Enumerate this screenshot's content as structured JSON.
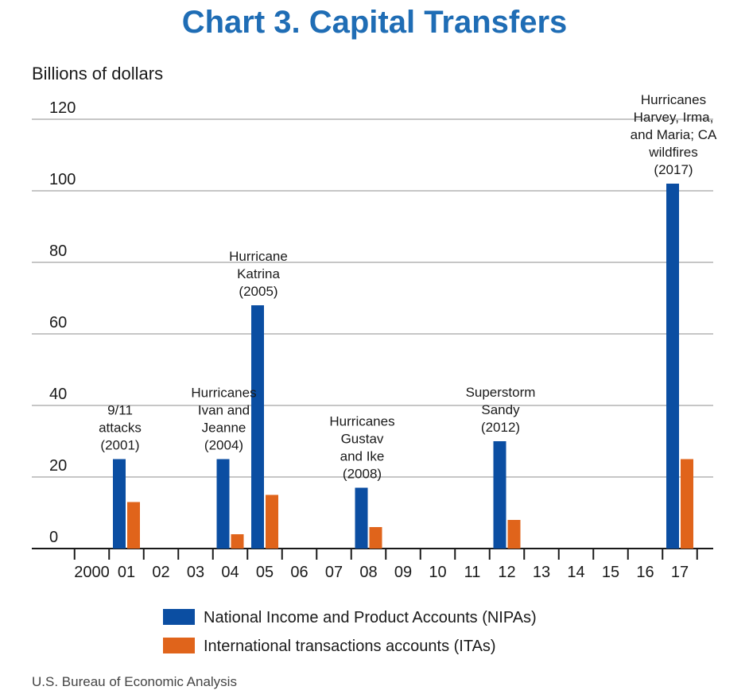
{
  "chart_data": {
    "type": "bar",
    "title": "Chart 3. Capital Transfers",
    "ylabel": "Billions of dollars",
    "xlabel": "",
    "ylim": [
      0,
      120
    ],
    "yticks": [
      0,
      20,
      40,
      60,
      80,
      100,
      120
    ],
    "grid": true,
    "categories": [
      "2000",
      "01",
      "02",
      "03",
      "04",
      "05",
      "06",
      "07",
      "08",
      "09",
      "10",
      "11",
      "12",
      "13",
      "14",
      "15",
      "16",
      "17"
    ],
    "series": [
      {
        "name": "National Income and Product Accounts (NIPAs)",
        "color": "#0b4ea2",
        "values": [
          0,
          25,
          0,
          0,
          25,
          68,
          0,
          0,
          17,
          0,
          0,
          0,
          30,
          0,
          0,
          0,
          0,
          102
        ]
      },
      {
        "name": "International transactions accounts (ITAs)",
        "color": "#e0641b",
        "values": [
          0,
          13,
          0,
          0,
          4,
          15,
          0,
          0,
          6,
          0,
          0,
          0,
          8,
          0,
          0,
          0,
          0,
          25
        ]
      }
    ],
    "annotations": [
      {
        "category": "01",
        "lines": [
          "9/11",
          "attacks",
          "(2001)"
        ]
      },
      {
        "category": "04",
        "lines": [
          "Hurricanes",
          "Ivan and",
          "Jeanne",
          "(2004)"
        ]
      },
      {
        "category": "05",
        "lines": [
          "Hurricane",
          "Katrina",
          "(2005)"
        ]
      },
      {
        "category": "08",
        "lines": [
          "Hurricanes",
          "Gustav",
          "and Ike",
          "(2008)"
        ]
      },
      {
        "category": "12",
        "lines": [
          "Superstorm",
          "Sandy",
          "(2012)"
        ]
      },
      {
        "category": "17",
        "lines": [
          "Hurricanes",
          "Harvey, Irma,",
          "and Maria; CA",
          "wildfires",
          "(2017)"
        ]
      }
    ],
    "legend_position": "bottom"
  },
  "colors": {
    "title": "#1f6db5",
    "grid": "#b3b3b3",
    "axis": "#1a1a1a"
  },
  "source": "U.S. Bureau of Economic Analysis"
}
